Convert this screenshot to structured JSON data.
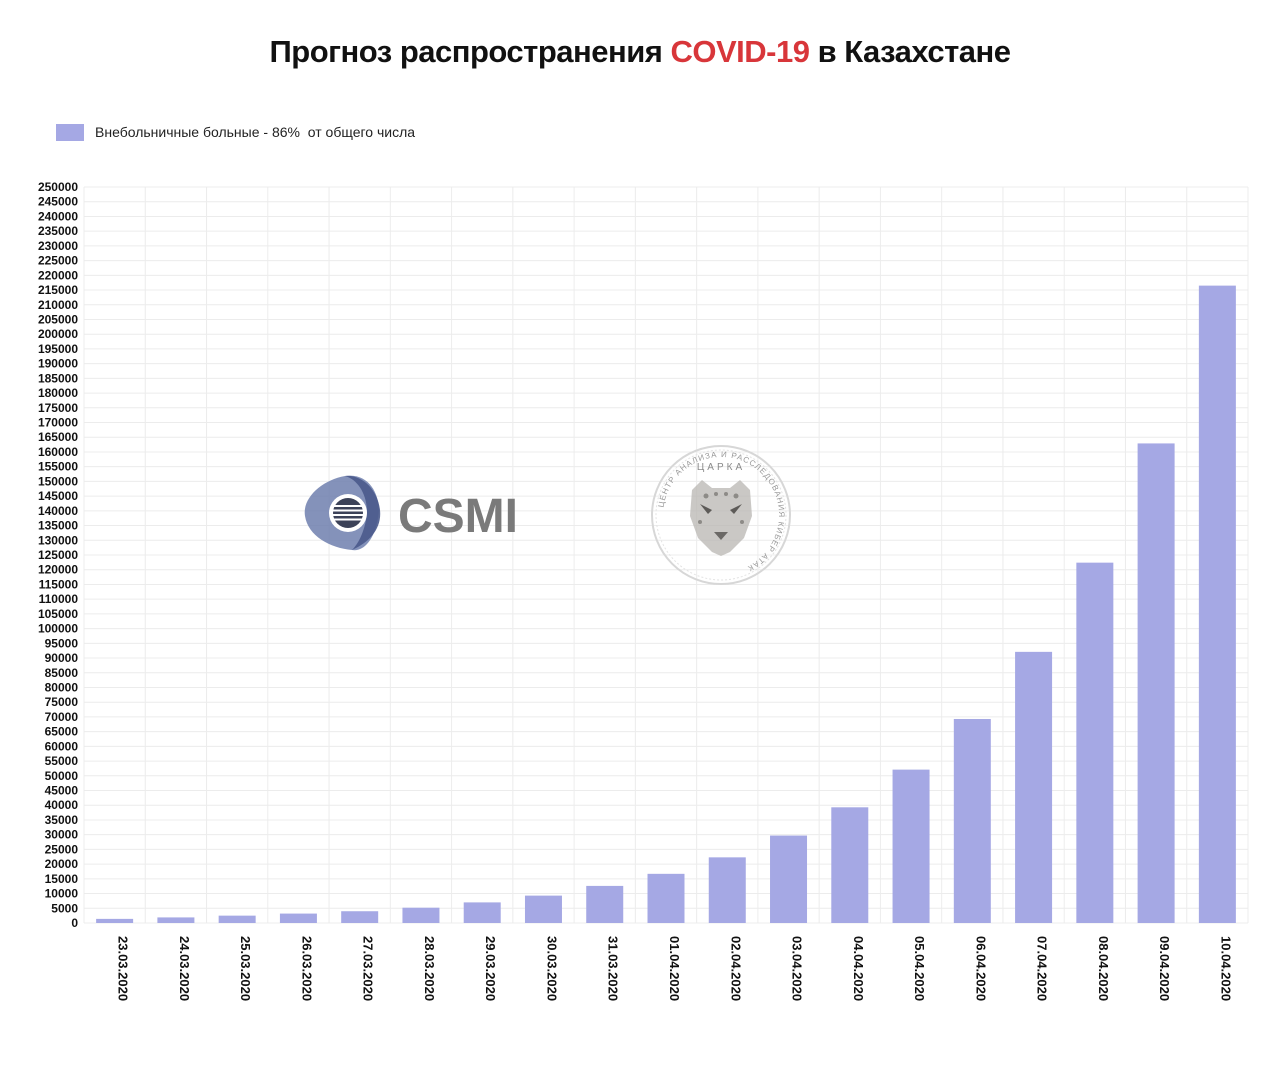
{
  "header": {
    "title_before": "Прогноз распространения ",
    "title_accent": "COVID-19",
    "title_after": " в Казахстане"
  },
  "colors": {
    "accent": "#d8363a",
    "bar": "#a5a8e4",
    "grid": "#ececec"
  },
  "logos": {
    "csmi_text": "CSMI",
    "seal_top_text": "ЦАРКА",
    "seal_ring_text": "ЦЕНТР АНАЛИЗА И РАССЛЕДОВАНИЯ КИБЕР АТАК"
  },
  "chart_data": {
    "type": "bar",
    "title": "Прогноз распространения COVID-19 в Казахстане",
    "xlabel": "",
    "ylabel": "",
    "ylim": [
      0,
      250000
    ],
    "ytick_step": 5000,
    "grid": true,
    "legend_position": "top-left",
    "categories": [
      "23.03.2020",
      "24.03.2020",
      "25.03.2020",
      "26.03.2020",
      "27.03.2020",
      "28.03.2020",
      "29.03.2020",
      "30.03.2020",
      "31.03.2020",
      "01.04.2020",
      "02.04.2020",
      "03.04.2020",
      "04.04.2020",
      "05.04.2020",
      "06.04.2020",
      "07.04.2020",
      "08.04.2020",
      "09.04.2020",
      "10.04.2020"
    ],
    "series": [
      {
        "name": "Внебольничные больные - 86%  от общего числа",
        "color": "#a5a8e4",
        "values": [
          1400,
          1900,
          2500,
          3200,
          4000,
          5200,
          7000,
          9300,
          12600,
          16700,
          22300,
          29700,
          39300,
          52100,
          69300,
          92100,
          122400,
          162900,
          216500
        ]
      }
    ]
  }
}
